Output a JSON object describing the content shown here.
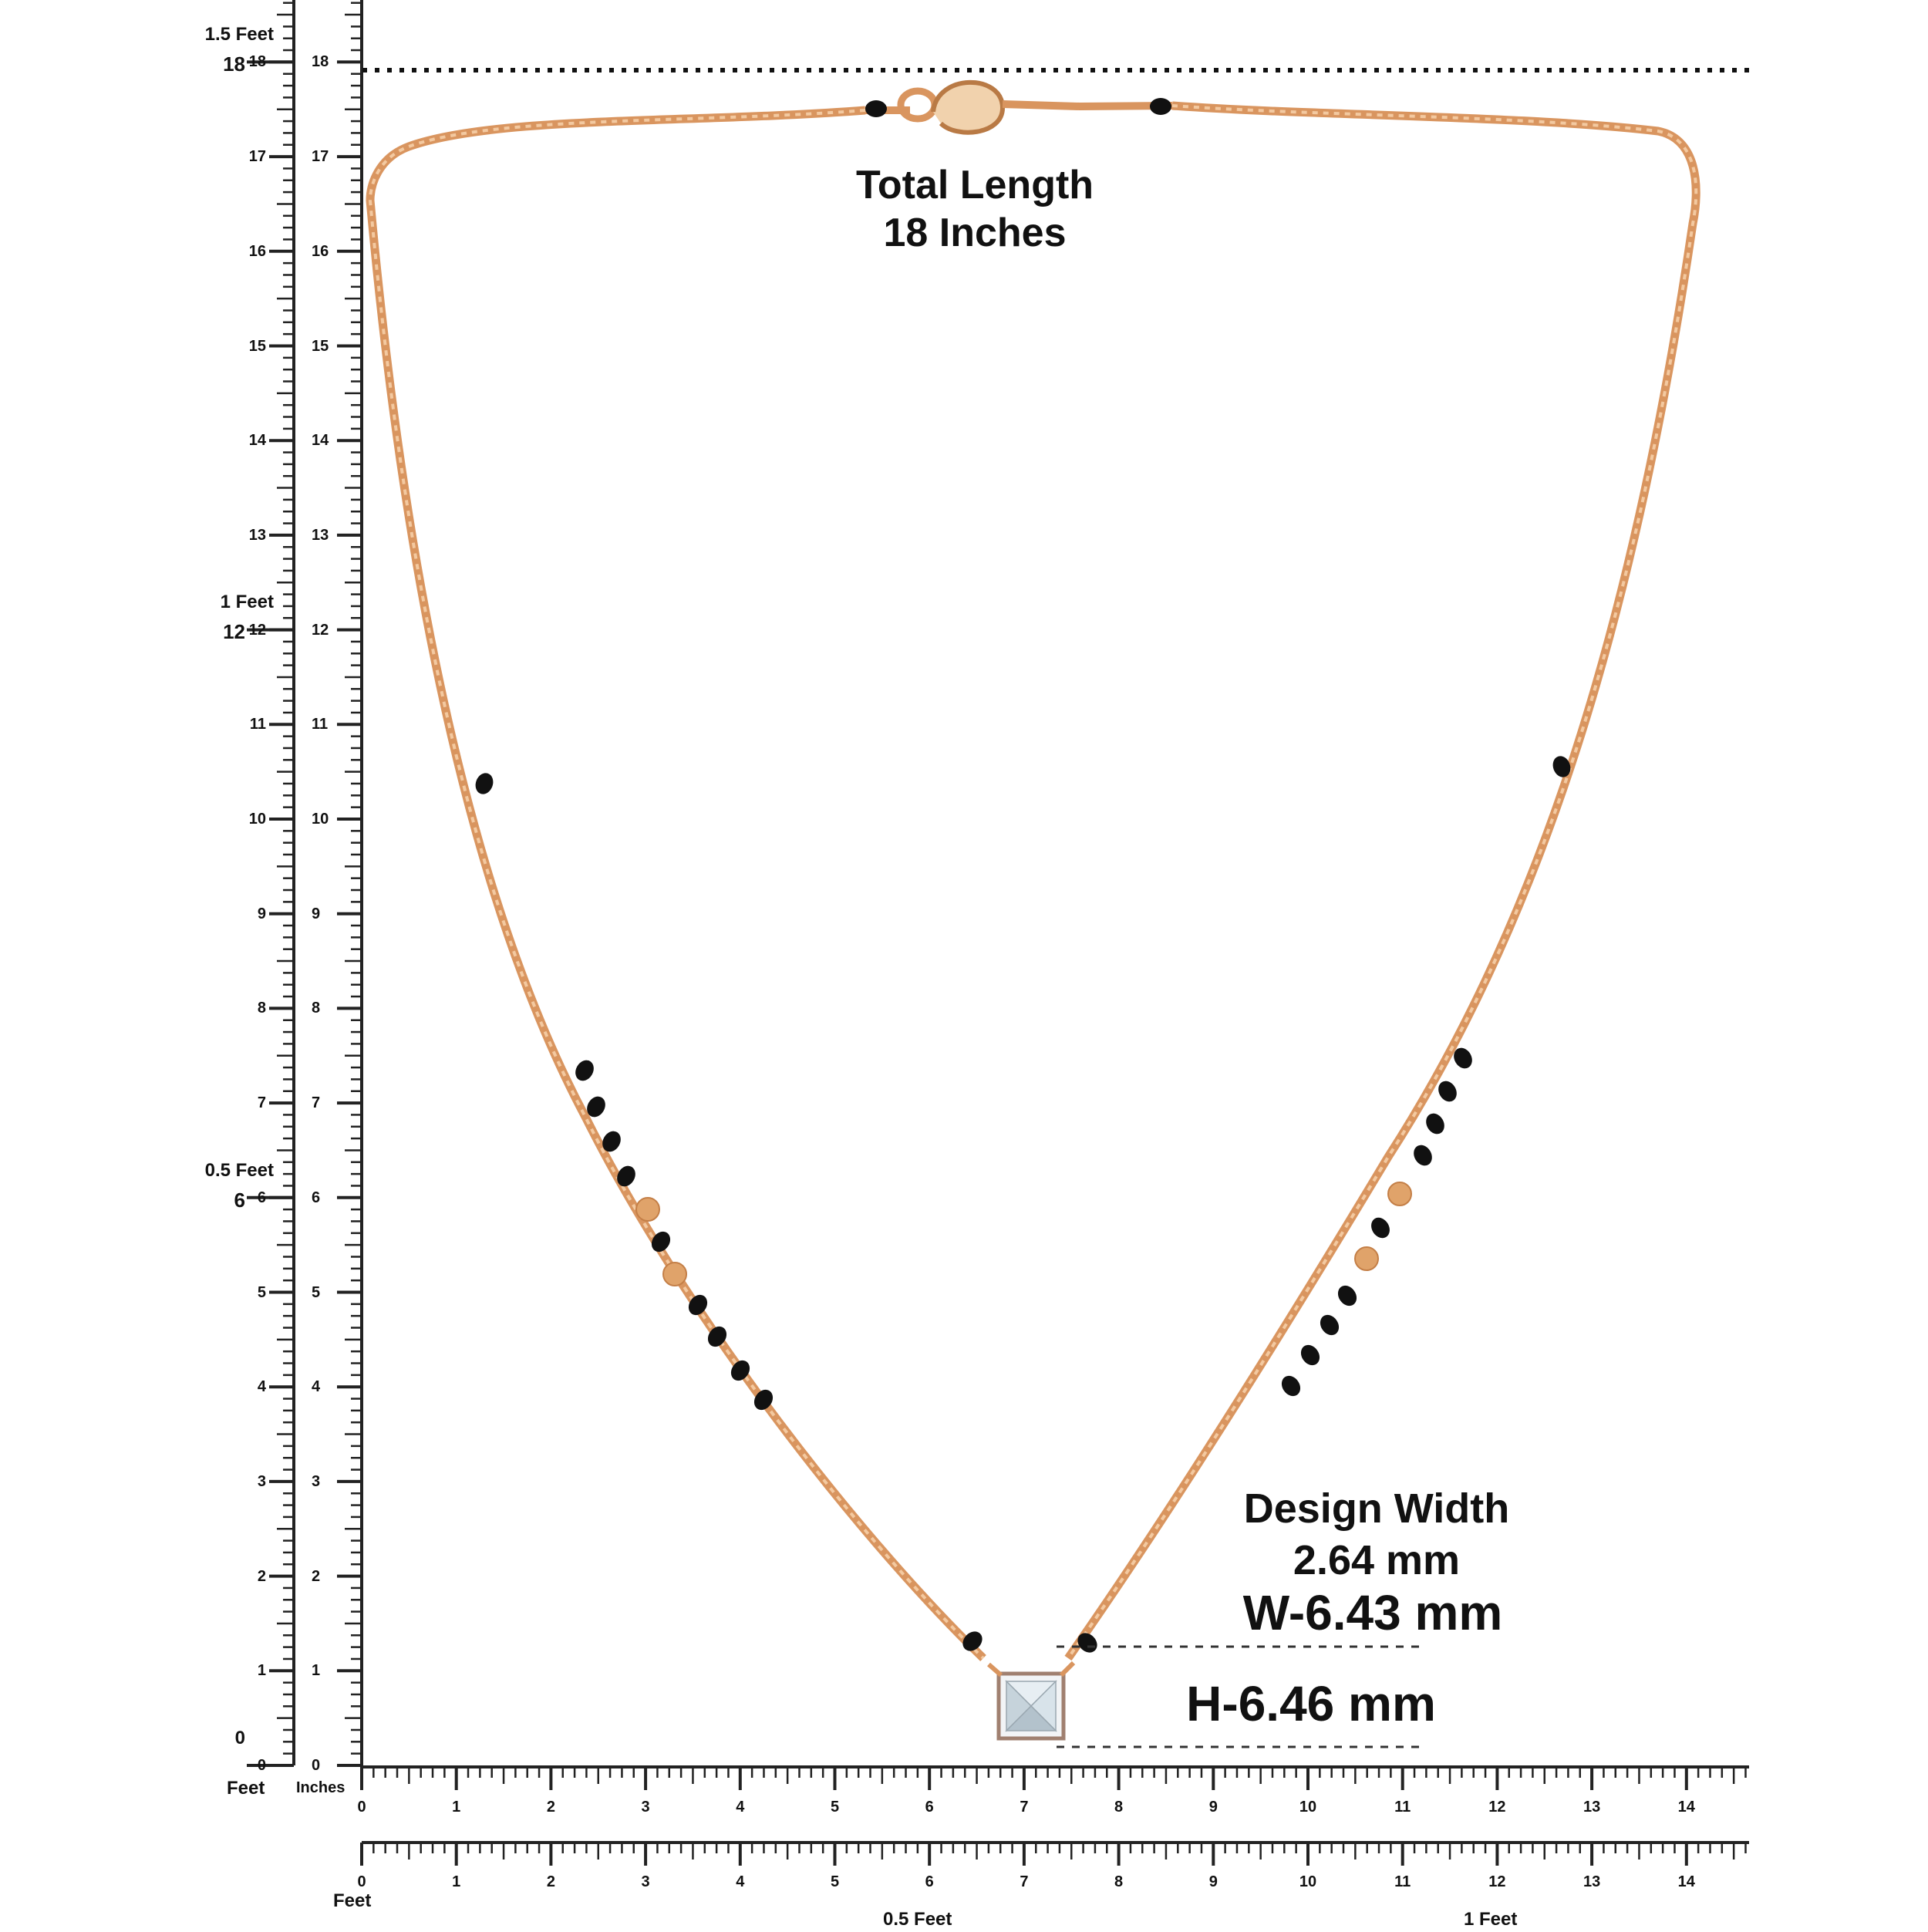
{
  "left_ruler": {
    "feet_marks": [
      {
        "inch": 18,
        "feet": "1.5 Feet",
        "value": "18"
      },
      {
        "inch": 12,
        "feet": "1 Feet",
        "value": "12"
      },
      {
        "inch": 6,
        "feet": "0.5 Feet",
        "value": "6"
      },
      {
        "inch": 0,
        "feet": "0",
        "value": ""
      }
    ],
    "feet_label": "Feet",
    "inches_label": "Inches",
    "inch_labels": [
      "0",
      "1",
      "2",
      "3",
      "4",
      "5",
      "6",
      "7",
      "8",
      "9",
      "10",
      "11",
      "12",
      "13",
      "14",
      "15",
      "16",
      "17",
      "18"
    ]
  },
  "bottom_ruler_inches": {
    "labels": [
      "0",
      "1",
      "2",
      "3",
      "4",
      "5",
      "6",
      "7",
      "8",
      "9",
      "10",
      "11",
      "12",
      "13",
      "14"
    ]
  },
  "bottom_ruler_feet": {
    "labels": [
      "0",
      "1",
      "2",
      "3",
      "4",
      "5",
      "6",
      "7",
      "8",
      "9",
      "10",
      "11",
      "12",
      "13",
      "14"
    ],
    "feet_label": "Feet",
    "half_foot_label": "0.5 Feet",
    "one_foot_label": "1 Feet"
  },
  "annotations": {
    "total_length_line1": "Total Length",
    "total_length_line2": "18 Inches",
    "design_width_line1": "Design Width",
    "design_width_line2": "2.64 mm",
    "width_label": "W-6.43 mm",
    "height_label": "H-6.46 mm"
  },
  "colors": {
    "chain": "#d9955f",
    "bead_black": "#111111",
    "bead_gold": "#e0a36a",
    "ruler": "#222222",
    "stone": "#dfe8ee"
  },
  "icons": [
    "lobster-clasp-icon",
    "princess-cut-diamond-icon"
  ]
}
